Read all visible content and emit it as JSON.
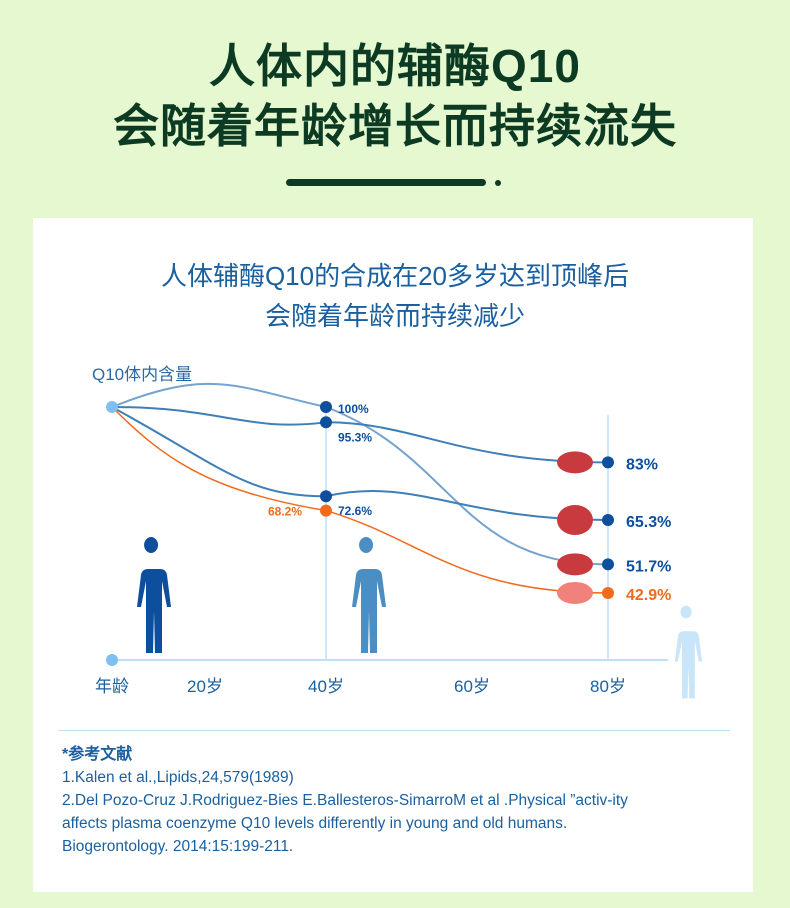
{
  "header": {
    "line1": "人体内的辅酶Q10",
    "line2": "会随着年龄增长而持续流失"
  },
  "subtitle": {
    "line1": "人体辅酶Q10的合成在20多岁达到顶峰后",
    "line2": "会随着年龄而持续减少"
  },
  "chart_data": {
    "type": "line",
    "ylabel": "Q10体内含量",
    "xlabel": "年龄",
    "x_ticks": [
      "20岁",
      "40岁",
      "60岁",
      "80岁"
    ],
    "x": [
      40,
      80
    ],
    "series": [
      {
        "icon": "kidney-icon",
        "values": [
          100,
          51.7
        ],
        "labels": [
          "100%",
          "51.7%"
        ],
        "color": "#5b93c7"
      },
      {
        "icon": "liver-icon",
        "values": [
          95.3,
          83
        ],
        "labels": [
          "95.3%",
          "83%"
        ],
        "color": "#3f7fb8"
      },
      {
        "icon": "lung-icon",
        "values": [
          72.6,
          65.3
        ],
        "labels": [
          "72.6%",
          "65.3%"
        ],
        "color": "#3f7fb8"
      },
      {
        "icon": "pancreas-icon",
        "values": [
          68.2,
          42.9
        ],
        "labels": [
          "68.2%",
          "42.9%"
        ],
        "color": "#f26a1b"
      }
    ],
    "colors": {
      "blue": "#0d4f9c",
      "orange": "#f26a1b",
      "axis": "#bde0f7"
    }
  },
  "references": {
    "heading": "*参考文献",
    "items": [
      "1.Kalen et al.,Lipids,24,579(1989)",
      "2.Del Pozo-Cruz J.Rodriguez-Bies E.Ballesteros-SimarroM et al .Physical ”activ-ity",
      "affects plasma coenzyme Q10 levels differently in young and old humans.",
      "Biogerontology. 2014:15:199-211."
    ]
  }
}
